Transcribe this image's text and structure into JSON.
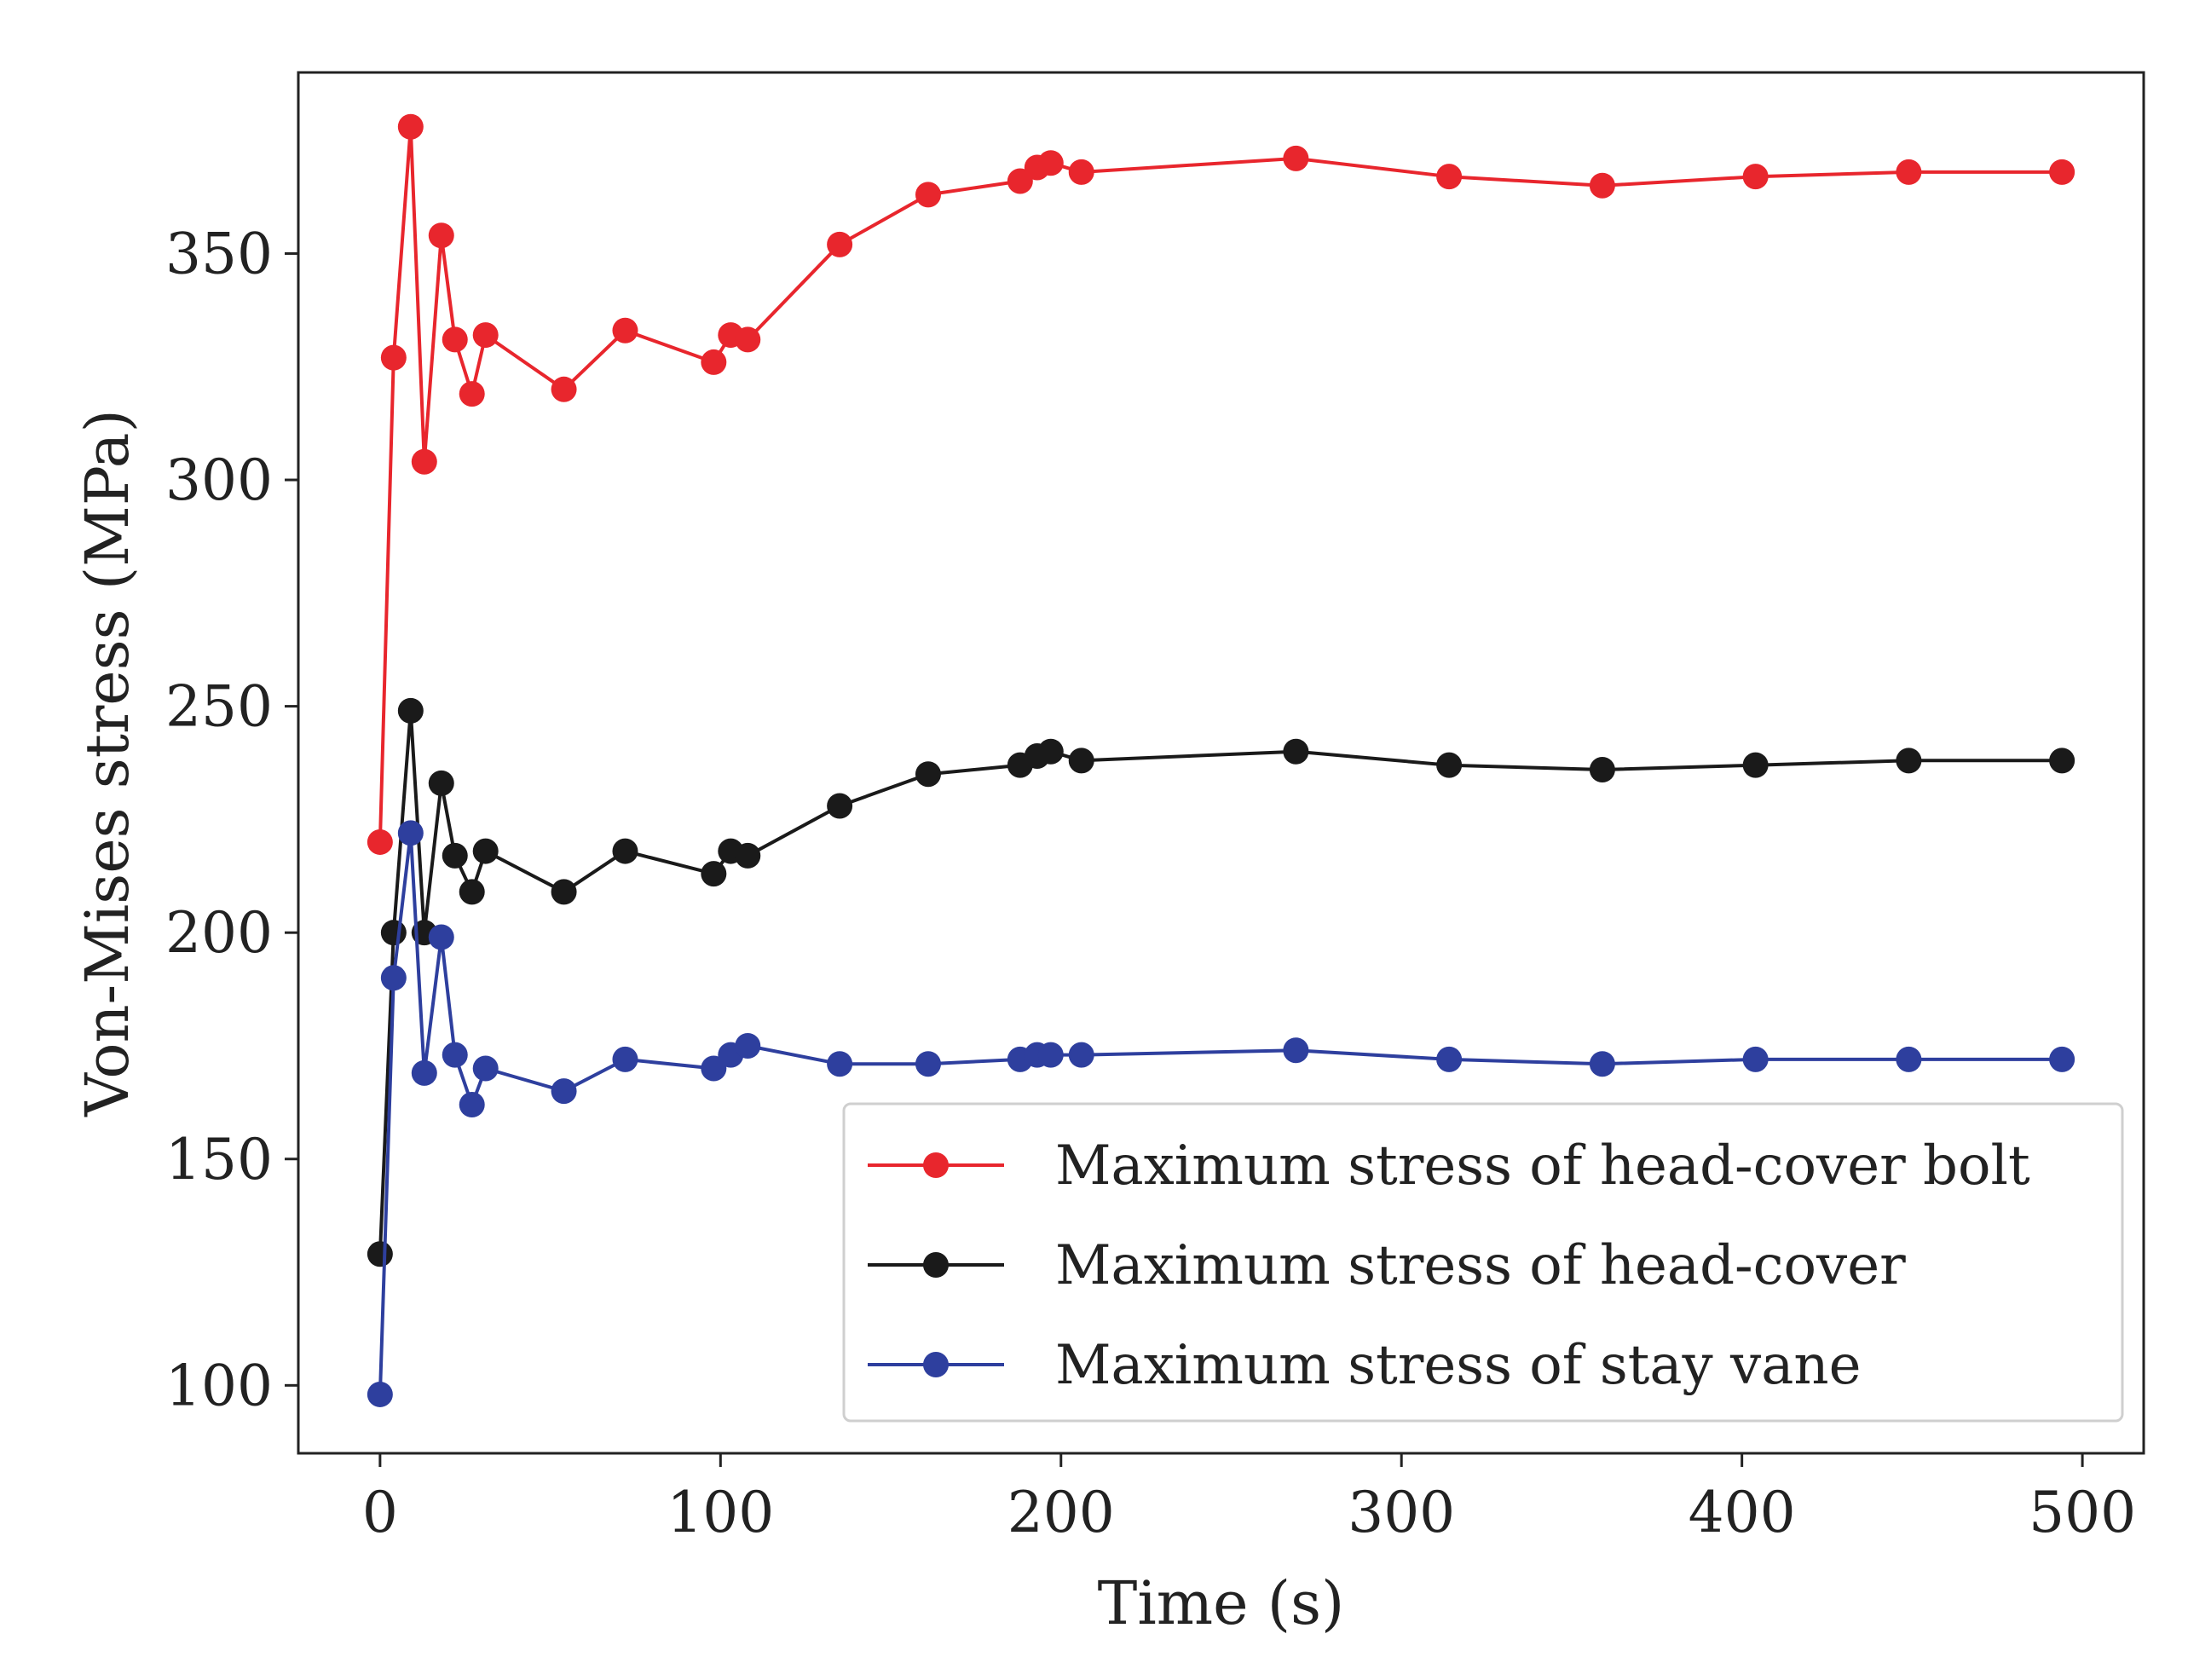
{
  "chart_data": {
    "type": "line",
    "title": "",
    "xlabel": "Time (s)",
    "ylabel": "Von-Mises stress (MPa)",
    "xlim": [
      -24,
      518
    ],
    "ylim": [
      85,
      390
    ],
    "xticks": [
      0,
      100,
      200,
      300,
      400,
      500
    ],
    "yticks": [
      100,
      150,
      200,
      250,
      300,
      350
    ],
    "grid": false,
    "legend_position": "lower-right",
    "series": [
      {
        "name": "Maximum stress of head-cover bolt",
        "color": "#e8262d",
        "x": [
          0,
          4,
          9,
          13,
          18,
          22,
          27,
          31,
          54,
          72,
          98,
          103,
          108,
          135,
          161,
          188,
          193,
          197,
          206,
          269,
          314,
          359,
          404,
          449,
          494
        ],
        "y": [
          220,
          327,
          378,
          304,
          354,
          331,
          319,
          332,
          320,
          333,
          326,
          332,
          331,
          352,
          363,
          366,
          369,
          370,
          368,
          371,
          367,
          365,
          367,
          368,
          368
        ]
      },
      {
        "name": "Maximum stress of head-cover",
        "color": "#1a1a1a",
        "x": [
          0,
          4,
          9,
          13,
          18,
          22,
          27,
          31,
          54,
          72,
          98,
          103,
          108,
          135,
          161,
          188,
          193,
          197,
          206,
          269,
          314,
          359,
          404,
          449,
          494
        ],
        "y": [
          129,
          200,
          249,
          200,
          233,
          217,
          209,
          218,
          209,
          218,
          213,
          218,
          217,
          228,
          235,
          237,
          239,
          240,
          238,
          240,
          237,
          236,
          237,
          238,
          238
        ]
      },
      {
        "name": "Maximum stress of stay vane",
        "color": "#2e3f9e",
        "x": [
          0,
          4,
          9,
          13,
          18,
          22,
          27,
          31,
          54,
          72,
          98,
          103,
          108,
          135,
          161,
          188,
          193,
          197,
          206,
          269,
          314,
          359,
          404,
          449,
          494
        ],
        "y": [
          98,
          190,
          222,
          169,
          199,
          173,
          162,
          170,
          165,
          172,
          170,
          173,
          175,
          171,
          171,
          172,
          173,
          173,
          173,
          174,
          172,
          171,
          172,
          172,
          172
        ]
      }
    ]
  }
}
